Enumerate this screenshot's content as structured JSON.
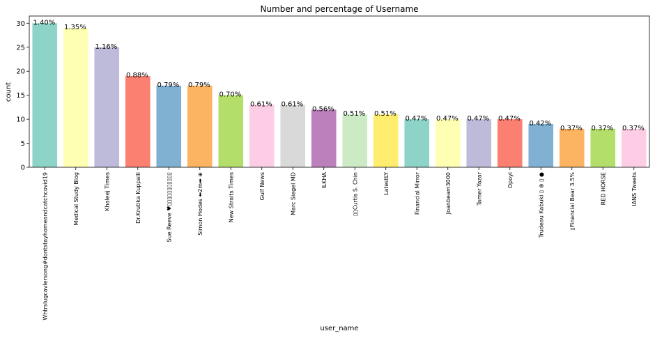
{
  "chart_data": {
    "type": "bar",
    "title": "Number and percentage of Username",
    "xlabel": "user_name",
    "ylabel": "count",
    "ylim": [
      0,
      31.5
    ],
    "yticks": [
      0,
      5,
      10,
      15,
      20,
      25,
      30
    ],
    "grid": false,
    "categories": [
      "Whtrslugcavlersong#dontstayhomeandcatchcovid19",
      "Medical Study Blog",
      "Khaleej Times",
      "Dr.Krutika Kuppalli",
      "Sue Reeve ♥▯▯▯▯▯▯▯▯▯▯▯",
      "Simon Hodes ⬅2m➡ ⊕",
      "New Straits Times",
      "Gulf News",
      "Marc Siegel MD",
      "ILKHA",
      "▯▯Curtis S. Chin",
      "LatestLY",
      "Financial Mirror",
      "Joanbeam3000",
      "Tamer Yazar",
      "Opoyi",
      "Trudeau Kabuki ▯ ⊕ ▯ ●",
      "▯Financial Bear 3.5%",
      "RED HORSE",
      "IANS Tweets"
    ],
    "values": [
      30,
      29,
      25,
      19,
      17,
      17,
      15,
      13,
      13,
      12,
      11,
      11,
      10,
      10,
      10,
      10,
      9,
      8,
      8,
      8
    ],
    "labels": [
      "1.40%",
      "1.35%",
      "1.16%",
      "0.88%",
      "0.79%",
      "0.79%",
      "0.70%",
      "0.61%",
      "0.61%",
      "0.56%",
      "0.51%",
      "0.51%",
      "0.47%",
      "0.47%",
      "0.47%",
      "0.47%",
      "0.42%",
      "0.37%",
      "0.37%",
      "0.37%"
    ],
    "colors": [
      "#8dd3c7",
      "#ffffb3",
      "#bebada",
      "#fb8072",
      "#80b1d3",
      "#fdb462",
      "#b3de69",
      "#fccde5",
      "#d9d9d9",
      "#bc80bd",
      "#ccebc5",
      "#ffed6f",
      "#8dd3c7",
      "#ffffb3",
      "#bebada",
      "#fb8072",
      "#80b1d3",
      "#fdb462",
      "#b3de69",
      "#fccde5"
    ]
  }
}
